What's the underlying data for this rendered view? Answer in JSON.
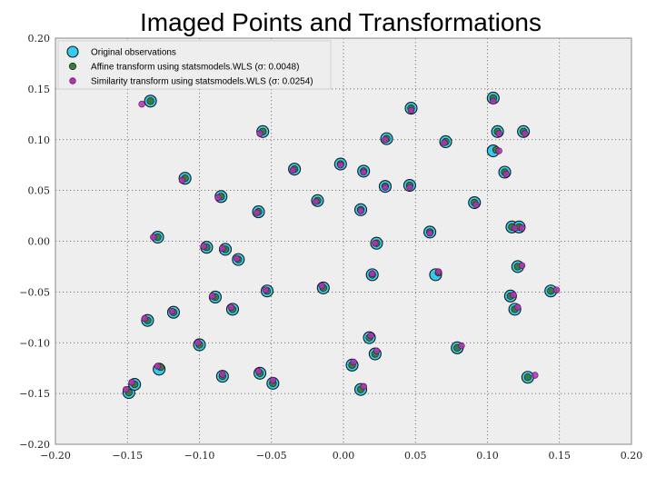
{
  "chart_data": {
    "type": "scatter",
    "title": "Imaged Points and Transformations",
    "xlabel": "",
    "ylabel": "",
    "xlim": [
      -0.2,
      0.2
    ],
    "ylim": [
      -0.2,
      0.2
    ],
    "xticks": [
      "−0.20",
      "−0.15",
      "−0.10",
      "−0.05",
      "0.00",
      "0.05",
      "0.10",
      "0.15",
      "0.20"
    ],
    "yticks": [
      "−0.20",
      "−0.15",
      "−0.10",
      "−0.05",
      "0.00",
      "0.05",
      "0.10",
      "0.15",
      "0.20"
    ],
    "grid": true,
    "legend_position": "top-left",
    "colors": {
      "background": "#eeeeee",
      "original": "#33ccee",
      "affine": "#3a7a3a",
      "similarity": "#b030b0"
    },
    "series": [
      {
        "name": "Original observations",
        "points": [
          [
            -0.134,
            0.138
          ],
          [
            -0.056,
            0.108
          ],
          [
            -0.034,
            0.071
          ],
          [
            -0.11,
            0.062
          ],
          [
            -0.085,
            0.044
          ],
          [
            -0.059,
            0.029
          ],
          [
            -0.018,
            0.04
          ],
          [
            -0.002,
            0.076
          ],
          [
            0.014,
            0.069
          ],
          [
            0.03,
            0.101
          ],
          [
            0.047,
            0.131
          ],
          [
            0.071,
            0.098
          ],
          [
            0.104,
            0.141
          ],
          [
            0.107,
            0.108
          ],
          [
            0.104,
            0.089
          ],
          [
            0.125,
            0.108
          ],
          [
            0.112,
            0.068
          ],
          [
            0.091,
            0.038
          ],
          [
            0.046,
            0.055
          ],
          [
            0.029,
            0.054
          ],
          [
            0.012,
            0.031
          ],
          [
            -0.129,
            0.004
          ],
          [
            -0.095,
            -0.006
          ],
          [
            -0.082,
            -0.008
          ],
          [
            -0.073,
            -0.018
          ],
          [
            0.023,
            -0.002
          ],
          [
            0.06,
            0.009
          ],
          [
            0.117,
            0.014
          ],
          [
            0.122,
            0.014
          ],
          [
            -0.089,
            -0.055
          ],
          [
            -0.077,
            -0.067
          ],
          [
            -0.053,
            -0.049
          ],
          [
            -0.014,
            -0.046
          ],
          [
            0.02,
            -0.033
          ],
          [
            0.064,
            -0.033
          ],
          [
            0.116,
            -0.054
          ],
          [
            0.121,
            -0.025
          ],
          [
            0.119,
            -0.067
          ],
          [
            0.144,
            -0.049
          ],
          [
            -0.118,
            -0.07
          ],
          [
            -0.136,
            -0.078
          ],
          [
            -0.1,
            -0.102
          ],
          [
            -0.128,
            -0.126
          ],
          [
            -0.084,
            -0.133
          ],
          [
            -0.058,
            -0.13
          ],
          [
            -0.049,
            -0.14
          ],
          [
            -0.149,
            -0.149
          ],
          [
            -0.145,
            -0.141
          ],
          [
            0.006,
            -0.122
          ],
          [
            0.018,
            -0.095
          ],
          [
            0.022,
            -0.111
          ],
          [
            0.012,
            -0.146
          ],
          [
            0.079,
            -0.105
          ],
          [
            0.128,
            -0.134
          ]
        ]
      },
      {
        "name": "Affine transform using statsmodels.WLS (σ: 0.0048)",
        "points": [
          [
            -0.134,
            0.138
          ],
          [
            -0.056,
            0.108
          ],
          [
            -0.034,
            0.071
          ],
          [
            -0.11,
            0.062
          ],
          [
            -0.085,
            0.044
          ],
          [
            -0.059,
            0.029
          ],
          [
            -0.018,
            0.04
          ],
          [
            -0.002,
            0.076
          ],
          [
            0.014,
            0.069
          ],
          [
            0.03,
            0.101
          ],
          [
            0.047,
            0.131
          ],
          [
            0.071,
            0.098
          ],
          [
            0.104,
            0.141
          ],
          [
            0.107,
            0.108
          ],
          [
            0.106,
            0.09
          ],
          [
            0.125,
            0.108
          ],
          [
            0.112,
            0.068
          ],
          [
            0.091,
            0.038
          ],
          [
            0.046,
            0.055
          ],
          [
            0.029,
            0.054
          ],
          [
            0.012,
            0.031
          ],
          [
            -0.129,
            0.004
          ],
          [
            -0.095,
            -0.006
          ],
          [
            -0.082,
            -0.008
          ],
          [
            -0.073,
            -0.018
          ],
          [
            0.023,
            -0.002
          ],
          [
            0.06,
            0.009
          ],
          [
            0.117,
            0.014
          ],
          [
            0.122,
            0.014
          ],
          [
            -0.089,
            -0.055
          ],
          [
            -0.077,
            -0.067
          ],
          [
            -0.053,
            -0.049
          ],
          [
            -0.014,
            -0.046
          ],
          [
            0.02,
            -0.033
          ],
          [
            0.066,
            -0.031
          ],
          [
            0.116,
            -0.054
          ],
          [
            0.121,
            -0.025
          ],
          [
            0.119,
            -0.067
          ],
          [
            0.144,
            -0.049
          ],
          [
            -0.118,
            -0.07
          ],
          [
            -0.136,
            -0.078
          ],
          [
            -0.1,
            -0.102
          ],
          [
            -0.127,
            -0.124
          ],
          [
            -0.084,
            -0.133
          ],
          [
            -0.058,
            -0.13
          ],
          [
            -0.049,
            -0.14
          ],
          [
            -0.149,
            -0.149
          ],
          [
            -0.145,
            -0.141
          ],
          [
            0.006,
            -0.122
          ],
          [
            0.018,
            -0.095
          ],
          [
            0.022,
            -0.111
          ],
          [
            0.012,
            -0.146
          ],
          [
            0.079,
            -0.105
          ],
          [
            0.128,
            -0.134
          ]
        ]
      },
      {
        "name": "Similarity transform using statsmodels.WLS (σ: 0.0254)",
        "points": [
          [
            -0.14,
            0.135
          ],
          [
            -0.058,
            0.106
          ],
          [
            -0.035,
            0.07
          ],
          [
            -0.112,
            0.06
          ],
          [
            -0.087,
            0.043
          ],
          [
            -0.06,
            0.028
          ],
          [
            -0.019,
            0.039
          ],
          [
            -0.002,
            0.075
          ],
          [
            0.014,
            0.068
          ],
          [
            0.029,
            0.1
          ],
          [
            0.047,
            0.129
          ],
          [
            0.07,
            0.097
          ],
          [
            0.104,
            0.138
          ],
          [
            0.108,
            0.106
          ],
          [
            0.108,
            0.089
          ],
          [
            0.126,
            0.106
          ],
          [
            0.113,
            0.066
          ],
          [
            0.092,
            0.036
          ],
          [
            0.046,
            0.053
          ],
          [
            0.029,
            0.053
          ],
          [
            0.012,
            0.03
          ],
          [
            -0.132,
            0.004
          ],
          [
            -0.097,
            -0.005
          ],
          [
            -0.084,
            -0.007
          ],
          [
            -0.074,
            -0.017
          ],
          [
            0.022,
            -0.002
          ],
          [
            0.06,
            0.008
          ],
          [
            0.119,
            0.013
          ],
          [
            0.124,
            0.013
          ],
          [
            -0.091,
            -0.054
          ],
          [
            -0.078,
            -0.065
          ],
          [
            -0.054,
            -0.048
          ],
          [
            -0.015,
            -0.044
          ],
          [
            0.02,
            -0.032
          ],
          [
            0.066,
            -0.03
          ],
          [
            0.118,
            -0.053
          ],
          [
            0.124,
            -0.024
          ],
          [
            0.121,
            -0.065
          ],
          [
            0.148,
            -0.048
          ],
          [
            -0.119,
            -0.069
          ],
          [
            -0.138,
            -0.076
          ],
          [
            -0.101,
            -0.1
          ],
          [
            -0.129,
            -0.123
          ],
          [
            -0.084,
            -0.131
          ],
          [
            -0.059,
            -0.128
          ],
          [
            -0.049,
            -0.137
          ],
          [
            -0.151,
            -0.146
          ],
          [
            -0.147,
            -0.139
          ],
          [
            0.007,
            -0.119
          ],
          [
            0.019,
            -0.093
          ],
          [
            0.023,
            -0.108
          ],
          [
            0.014,
            -0.143
          ],
          [
            0.082,
            -0.103
          ],
          [
            0.133,
            -0.132
          ]
        ]
      }
    ]
  }
}
